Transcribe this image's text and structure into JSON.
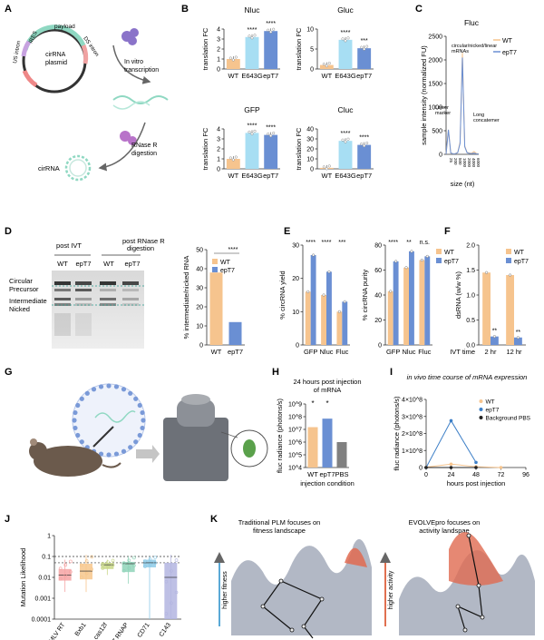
{
  "panel_letters": [
    "A",
    "B",
    "C",
    "D",
    "E",
    "F",
    "G",
    "H",
    "I",
    "J",
    "K"
  ],
  "colors": {
    "wt": "#f6c48e",
    "ept7_dark": "#6a8fd3",
    "ept7_light": "#a7def3",
    "gray": "#808080",
    "black": "#222222"
  },
  "panelA": {
    "labels": [
      "payload",
      "IRES",
      "DS intron",
      "US intron",
      "cirRNA\nplasmid",
      "In vitro\ntranscription",
      "RNase R\ndigestion",
      "cirRNA"
    ]
  },
  "panelB": {
    "ylabel": "translation FC",
    "significance": "****",
    "x_labels": [
      "WT",
      "E643G",
      "epT7"
    ]
  },
  "panelC": {
    "title": "Fluc",
    "ylabel": "sample intensity (normalized FU)",
    "xlabel": "size (nt)",
    "annotations": [
      "circular/nicked/linear\nmRNAs",
      "Lower\nmarker",
      "Long\nconcatemer"
    ],
    "legend": [
      "WT",
      "epT7"
    ]
  },
  "panelD": {
    "gel_headers": [
      "post IVT",
      "post RNase R\ndigestion"
    ],
    "lane_labels": [
      "WT",
      "epT7",
      "WT",
      "epT7"
    ],
    "band_labels": [
      "Circular",
      "Precursor",
      "Intermediate",
      "Nicked"
    ]
  },
  "panelE": {
    "legend": [
      "WT",
      "epT7"
    ]
  },
  "panelF": {
    "legend": [
      "WT",
      "epT7"
    ]
  },
  "panelH": {
    "title": "24 hours post injection\nof mRNA"
  },
  "panelI": {
    "title": "in vivo time course of mRNA expression",
    "legend": [
      "WT",
      "epT7",
      "Background PBS"
    ]
  },
  "panelK": {
    "left_title": "Traditional PLM focuses on\nfitness landscape",
    "right_title": "EVOLVEpro focuses on\nactivity landspae",
    "left_axis": "higher fitness",
    "right_axis": "higher activity"
  },
  "chart_data": [
    {
      "id": "B-Nluc",
      "type": "bar",
      "title": "Nluc",
      "ylabel": "translation FC",
      "categories": [
        "WT",
        "E643G",
        "epT7"
      ],
      "values": [
        1.0,
        3.2,
        3.8
      ],
      "ylim": [
        0,
        4
      ],
      "yticks": [
        0,
        1,
        2,
        3,
        4
      ],
      "significance": [
        "",
        "****",
        "****"
      ]
    },
    {
      "id": "B-Gluc",
      "type": "bar",
      "title": "Gluc",
      "ylabel": "translation FC",
      "categories": [
        "WT",
        "E643G",
        "epT7"
      ],
      "values": [
        1.0,
        7.3,
        5.2
      ],
      "ylim": [
        0,
        10
      ],
      "yticks": [
        0,
        5,
        10
      ],
      "significance": [
        "",
        "****",
        "***"
      ]
    },
    {
      "id": "B-GFP",
      "type": "bar",
      "title": "GFP",
      "ylabel": "translation FC",
      "categories": [
        "WT",
        "E643G",
        "epT7"
      ],
      "values": [
        1.0,
        3.6,
        3.4
      ],
      "ylim": [
        0,
        4
      ],
      "yticks": [
        0,
        1,
        2,
        3,
        4
      ],
      "significance": [
        "",
        "****",
        "****"
      ]
    },
    {
      "id": "B-Cluc",
      "type": "bar",
      "title": "Cluc",
      "ylabel": "translation FC",
      "categories": [
        "WT",
        "E643G",
        "epT7"
      ],
      "values": [
        1.0,
        28,
        24
      ],
      "ylim": [
        0,
        40
      ],
      "yticks": [
        0,
        10,
        20,
        30,
        40
      ],
      "significance": [
        "",
        "****",
        "****"
      ]
    },
    {
      "id": "C",
      "type": "line",
      "title": "Fluc",
      "xlabel": "size (nt)",
      "ylabel": "sample intensity (normalized FU)",
      "ylim": [
        0,
        2500
      ],
      "yticks": [
        0,
        500,
        1000,
        1500,
        2000,
        2500
      ],
      "x_ticklabels": [
        "25",
        "200",
        "500",
        "1000",
        "2000",
        "4000",
        "6000"
      ],
      "series": [
        {
          "name": "WT",
          "values": [
            5,
            520,
            30,
            10,
            15,
            40,
            260,
            2150,
            180,
            40,
            30,
            25,
            60,
            20,
            10
          ]
        },
        {
          "name": "epT7",
          "values": [
            5,
            520,
            28,
            12,
            14,
            35,
            230,
            2050,
            160,
            35,
            20,
            15,
            25,
            10,
            8
          ]
        }
      ]
    },
    {
      "id": "D-bar",
      "type": "bar",
      "ylabel": "% intermediate/nicked RNA",
      "categories": [
        "WT",
        "epT7"
      ],
      "values": [
        38,
        12
      ],
      "ylim": [
        0,
        50
      ],
      "yticks": [
        0,
        10,
        20,
        30,
        40,
        50
      ],
      "significance": "****",
      "legend": [
        "WT",
        "epT7"
      ]
    },
    {
      "id": "E-yield",
      "type": "bar",
      "ylabel": "% circRNA yield",
      "categories": [
        "GFP",
        "Nluc",
        "Fluc"
      ],
      "series": [
        {
          "name": "WT",
          "values": [
            16,
            15,
            10
          ]
        },
        {
          "name": "epT7",
          "values": [
            27,
            22,
            13
          ]
        }
      ],
      "ylim": [
        0,
        30
      ],
      "yticks": [
        0,
        10,
        20,
        30
      ],
      "significance": [
        "****",
        "****",
        "***"
      ]
    },
    {
      "id": "E-purity",
      "type": "bar",
      "ylabel": "% circRNA purity",
      "categories": [
        "GFP",
        "Nluc",
        "Fluc"
      ],
      "series": [
        {
          "name": "WT",
          "values": [
            43,
            62,
            68
          ]
        },
        {
          "name": "epT7",
          "values": [
            67,
            75,
            71
          ]
        }
      ],
      "ylim": [
        0,
        80
      ],
      "yticks": [
        0,
        20,
        40,
        60,
        80
      ],
      "significance": [
        "****",
        "**",
        "n.s."
      ]
    },
    {
      "id": "F",
      "type": "bar",
      "ylabel": "dsRNA (w/w %)",
      "xlabel": "IVT time",
      "categories": [
        "2 hr",
        "12 hr"
      ],
      "series": [
        {
          "name": "WT",
          "values": [
            1.45,
            1.4
          ]
        },
        {
          "name": "epT7",
          "values": [
            0.17,
            0.15
          ]
        }
      ],
      "ylim": [
        0,
        2
      ],
      "yticks": [
        0.0,
        0.5,
        1.0,
        1.5,
        2.0
      ],
      "significance": [
        "**",
        "**"
      ]
    },
    {
      "id": "H",
      "type": "bar",
      "title": "24 hours post injection of mRNA",
      "ylabel": "fluc radiance (photons/s)",
      "xlabel": "injection condition",
      "categories": [
        "WT",
        "epT7",
        "PBS"
      ],
      "values": [
        15000000.0,
        70000000.0,
        1000000.0
      ],
      "log": true,
      "ylim": [
        10000.0,
        1000000000.0
      ],
      "yticks": [
        "10^4",
        "10^5",
        "10^6",
        "10^7",
        "10^8",
        "10^9"
      ],
      "significance": [
        "*",
        "*",
        ""
      ]
    },
    {
      "id": "I",
      "type": "line",
      "title": "in vivo time course of mRNA expression",
      "ylabel": "fluc radiance (photons/s)",
      "xlabel": "hours post injection",
      "x": [
        0,
        24,
        48,
        72,
        96
      ],
      "series": [
        {
          "name": "WT",
          "x": [
            0,
            24,
            48,
            72
          ],
          "values": [
            2000000.0,
            20000000.0,
            5000000.0,
            0.0
          ]
        },
        {
          "name": "epT7",
          "x": [
            0,
            24,
            48
          ],
          "values": [
            0.0,
            275000000.0,
            30000000.0
          ]
        },
        {
          "name": "Background PBS",
          "x": [
            0,
            24,
            48
          ],
          "values": [
            0.0,
            0.0,
            0.0
          ]
        }
      ],
      "ylim": [
        0,
        400000000.0
      ],
      "yticks": [
        "0",
        "1×10^8",
        "2×10^8",
        "3×10^8",
        "4×10^8"
      ],
      "xticks": [
        0,
        24,
        48,
        72,
        96
      ]
    },
    {
      "id": "J",
      "type": "box",
      "ylabel": "Mutation Likelihood",
      "categories": [
        "MLV RT",
        "Bxb1",
        "cas12f",
        "T7 RNAP",
        "CD71",
        "C143"
      ],
      "series": [
        {
          "name": "MLV RT",
          "q1": 0.007,
          "median": 0.013,
          "q3": 0.025,
          "whislo": 0.002,
          "whishi": 0.07,
          "color": "#f5a3a3"
        },
        {
          "name": "Bxb1",
          "q1": 0.008,
          "median": 0.02,
          "q3": 0.045,
          "whislo": 0.002,
          "whishi": 0.12,
          "color": "#f7c78c"
        },
        {
          "name": "cas12f",
          "q1": 0.025,
          "median": 0.04,
          "q3": 0.05,
          "whislo": 0.013,
          "whishi": 0.07,
          "color": "#c9d88a"
        },
        {
          "name": "T7 RNAP",
          "q1": 0.018,
          "median": 0.045,
          "q3": 0.055,
          "whislo": 0.005,
          "whishi": 0.1,
          "color": "#8fd3b8"
        },
        {
          "name": "CD71",
          "q1": 0.03,
          "median": 0.05,
          "q3": 0.07,
          "whislo": 0.0001,
          "whishi": 0.1,
          "color": "#8ecbe8"
        },
        {
          "name": "C143",
          "q1": 0.0001,
          "median": 0.01,
          "q3": 0.05,
          "whislo": 0.0001,
          "whishi": 0.12,
          "color": "#b3b5e0"
        }
      ],
      "ylim": [
        0.0001,
        1
      ],
      "log": true,
      "yticks": [
        "0.0001",
        "0.001",
        "0.01",
        "0.1",
        "1"
      ],
      "hlines": [
        0.1,
        0.05
      ]
    }
  ]
}
